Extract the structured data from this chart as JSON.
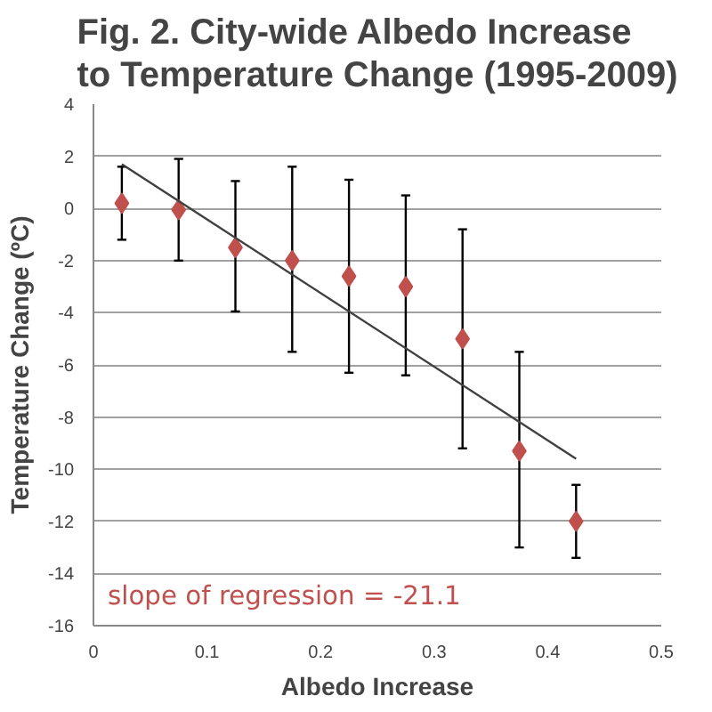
{
  "chart_data": {
    "type": "scatter",
    "title": "Fig. 2. City-wide Albedo Increase to Temperature Change (1995-2009)",
    "xlabel": "Albedo Increase",
    "ylabel": "Temperature Change (ºC)",
    "annotations": [
      "slope of regression = -21.1"
    ],
    "xlim": [
      0,
      0.5
    ],
    "xticks": [
      0,
      0.1,
      0.2,
      0.3,
      0.4,
      0.5
    ],
    "ylim": [
      -16,
      4
    ],
    "yticks": [
      -16,
      -14,
      -12,
      -10,
      -8,
      -6,
      -4,
      -2,
      0,
      2,
      4
    ],
    "grid": "y",
    "marker": "diamond",
    "series": [
      {
        "color": "#c0504d",
        "x": [
          0.025,
          0.075,
          0.125,
          0.175,
          0.225,
          0.275,
          0.325,
          0.375,
          0.425
        ],
        "values": [
          0.2,
          -0.05,
          -1.5,
          -2.0,
          -2.6,
          -3.0,
          -5.0,
          -9.3,
          -12.0
        ],
        "errors": [
          [
            -1.2,
            1.6
          ],
          [
            -2.0,
            1.9
          ],
          [
            -3.95,
            1.05
          ],
          [
            -5.5,
            1.6
          ],
          [
            -6.3,
            1.1
          ],
          [
            -6.4,
            0.5
          ],
          [
            -9.2,
            -0.8
          ],
          [
            -13.0,
            -5.5
          ],
          [
            -13.4,
            -10.6
          ]
        ]
      },
      {
        "type": "line",
        "color": "#404040",
        "marker": "none",
        "x": [
          0.025,
          0.425
        ],
        "values": [
          1.7,
          -9.6
        ]
      }
    ]
  }
}
